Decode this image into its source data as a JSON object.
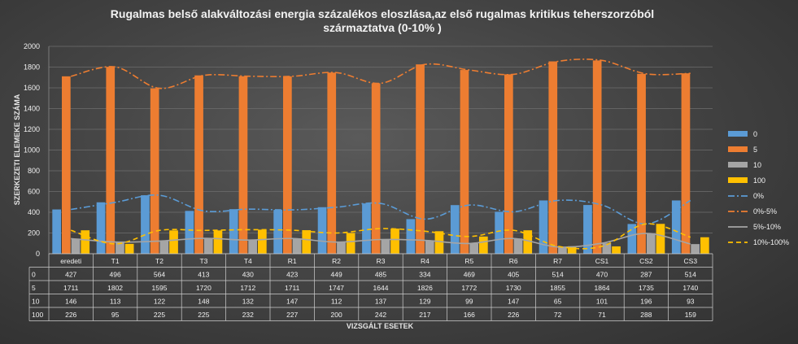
{
  "chart_data": {
    "type": "bar",
    "title_line1": "Rugalmas belső alakváltozási energia százalékos eloszlása,az első rugalmas kritikus teherszorzóból",
    "title_line2": "származtatva  (0-10% )",
    "ylabel": "SZERKEZETI ELEMEKE SZÁMA",
    "xlabel": "VIZSGÁLT ESETEK",
    "ylim": [
      0,
      2000
    ],
    "yticks": [
      0,
      200,
      400,
      600,
      800,
      1000,
      1200,
      1400,
      1600,
      1800,
      2000
    ],
    "grid": true,
    "legend_position": "right",
    "categories": [
      "eredeti",
      "T1",
      "T2",
      "T3",
      "T4",
      "R1",
      "R2",
      "R3",
      "R4",
      "R5",
      "R6",
      "R7",
      "CS1",
      "CS2",
      "CS3"
    ],
    "series": [
      {
        "name": "0",
        "color": "#5b9bd5",
        "values": [
          427,
          496,
          564,
          413,
          430,
          423,
          449,
          485,
          334,
          469,
          405,
          514,
          470,
          287,
          514
        ]
      },
      {
        "name": "5",
        "color": "#ed7d31",
        "values": [
          1711,
          1802,
          1595,
          1720,
          1712,
          1711,
          1747,
          1644,
          1826,
          1772,
          1730,
          1855,
          1864,
          1735,
          1740
        ]
      },
      {
        "name": "10",
        "color": "#a5a5a5",
        "values": [
          146,
          113,
          122,
          148,
          132,
          147,
          112,
          137,
          129,
          99,
          147,
          65,
          101,
          196,
          93
        ]
      },
      {
        "name": "100",
        "color": "#ffc000",
        "values": [
          226,
          95,
          225,
          225,
          232,
          227,
          200,
          242,
          217,
          166,
          226,
          72,
          71,
          288,
          159
        ]
      }
    ],
    "trendlines": [
      {
        "name": "0%",
        "color": "#5b9bd5",
        "dash": "8 3 2 3",
        "series_index": 0
      },
      {
        "name": "0%-5%",
        "color": "#ed7d31",
        "dash": "8 3 2 3",
        "series_index": 1
      },
      {
        "name": "5%-10%",
        "color": "#a5a5a5",
        "dash": "",
        "series_index": 2
      },
      {
        "name": "10%-100%",
        "color": "#ffc000",
        "dash": "6 4",
        "series_index": 3
      }
    ]
  }
}
